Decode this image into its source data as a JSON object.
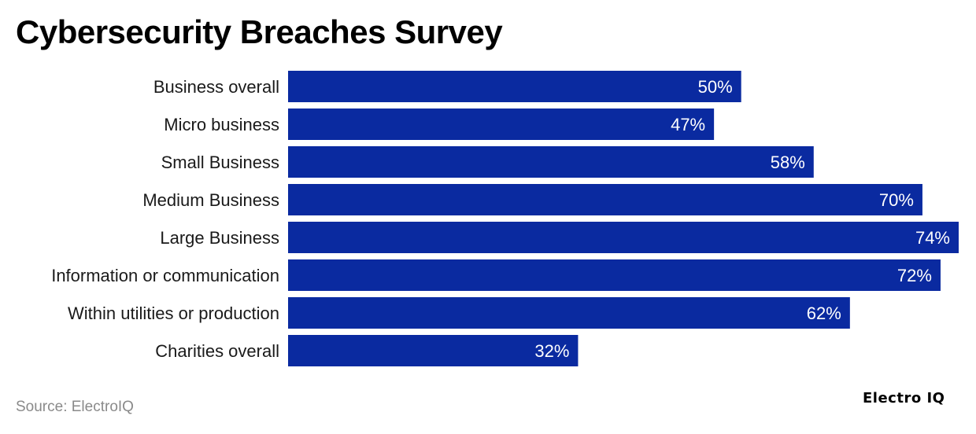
{
  "title": "Cybersecurity Breaches Survey",
  "source": "Source: ElectroIQ",
  "brand": "Electro IQ",
  "colors": {
    "bar": "#0a2aa0",
    "bar_label": "#ffffff",
    "category_label": "#1a1a1a"
  },
  "chart_data": {
    "type": "bar",
    "orientation": "horizontal",
    "categories": [
      "Business overall",
      "Micro business",
      "Small Business",
      "Medium Business",
      "Large Business",
      "Information or communication",
      "Within utilities or production",
      "Charities overall"
    ],
    "values": [
      50,
      47,
      58,
      70,
      74,
      72,
      62,
      32
    ],
    "value_labels": [
      "50%",
      "47%",
      "58%",
      "70%",
      "74%",
      "72%",
      "62%",
      "32%"
    ],
    "unit": "%",
    "xlim": [
      0,
      74
    ],
    "grid": false,
    "legend": "none"
  }
}
